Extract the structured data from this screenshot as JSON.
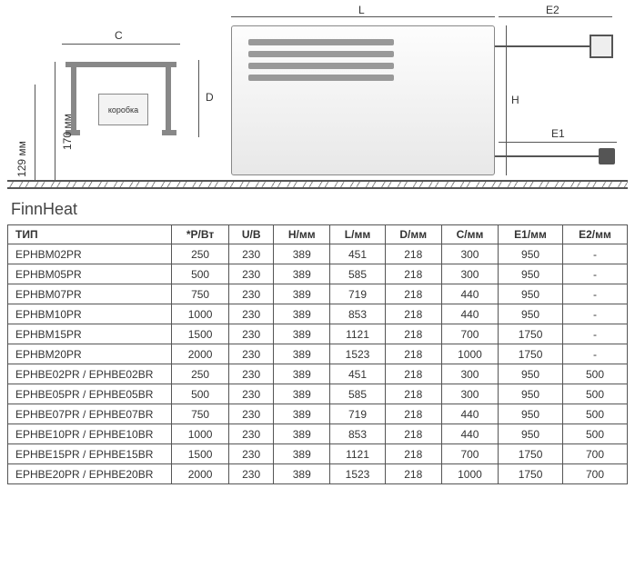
{
  "diagram": {
    "labels": {
      "C": "C",
      "D": "D",
      "L": "L",
      "H": "H",
      "E1": "E1",
      "E2": "E2",
      "box": "коробка",
      "h129": "129 мм",
      "h170": "170 мм"
    },
    "colors": {
      "line": "#555555",
      "text": "#333333",
      "heater_bg_top": "#fdfdfd",
      "heater_bg_bot": "#e8e8e8",
      "rail": "#888888"
    }
  },
  "title": "FinnHeat",
  "table": {
    "columns": [
      "ТИП",
      "*P/Вт",
      "U/В",
      "H/мм",
      "L/мм",
      "D/мм",
      "C/мм",
      "E1/мм",
      "E2/мм"
    ],
    "rows": [
      [
        "EPHBM02PR",
        "250",
        "230",
        "389",
        "451",
        "218",
        "300",
        "950",
        "-"
      ],
      [
        "EPHBM05PR",
        "500",
        "230",
        "389",
        "585",
        "218",
        "300",
        "950",
        "-"
      ],
      [
        "EPHBM07PR",
        "750",
        "230",
        "389",
        "719",
        "218",
        "440",
        "950",
        "-"
      ],
      [
        "EPHBM10PR",
        "1000",
        "230",
        "389",
        "853",
        "218",
        "440",
        "950",
        "-"
      ],
      [
        "EPHBM15PR",
        "1500",
        "230",
        "389",
        "1121",
        "218",
        "700",
        "1750",
        "-"
      ],
      [
        "EPHBM20PR",
        "2000",
        "230",
        "389",
        "1523",
        "218",
        "1000",
        "1750",
        "-"
      ],
      [
        "EPHBE02PR / EPHBE02BR",
        "250",
        "230",
        "389",
        "451",
        "218",
        "300",
        "950",
        "500"
      ],
      [
        "EPHBE05PR / EPHBE05BR",
        "500",
        "230",
        "389",
        "585",
        "218",
        "300",
        "950",
        "500"
      ],
      [
        "EPHBE07PR / EPHBE07BR",
        "750",
        "230",
        "389",
        "719",
        "218",
        "440",
        "950",
        "500"
      ],
      [
        "EPHBE10PR / EPHBE10BR",
        "1000",
        "230",
        "389",
        "853",
        "218",
        "440",
        "950",
        "500"
      ],
      [
        "EPHBE15PR / EPHBE15BR",
        "1500",
        "230",
        "389",
        "1121",
        "218",
        "700",
        "1750",
        "700"
      ],
      [
        "EPHBE20PR / EPHBE20BR",
        "2000",
        "230",
        "389",
        "1523",
        "218",
        "1000",
        "1750",
        "700"
      ]
    ]
  }
}
